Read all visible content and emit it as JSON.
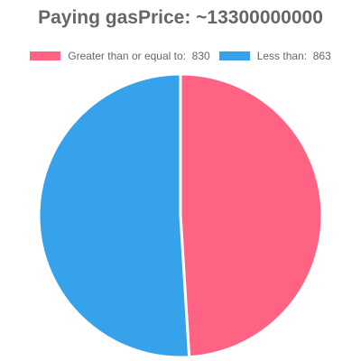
{
  "chart_data": {
    "type": "pie",
    "title": "Paying gasPrice: ~13300000000",
    "categories": [
      "Greater than or equal to:",
      "Less than:"
    ],
    "values": [
      830,
      863
    ],
    "colors": [
      "#ff6384",
      "#36a2eb"
    ],
    "legend": {
      "position": "top",
      "entries": [
        {
          "label": "Greater than or equal to:",
          "value": "830",
          "color": "#ff6384"
        },
        {
          "label": "Less than:",
          "value": "863",
          "color": "#36a2eb"
        }
      ]
    }
  }
}
